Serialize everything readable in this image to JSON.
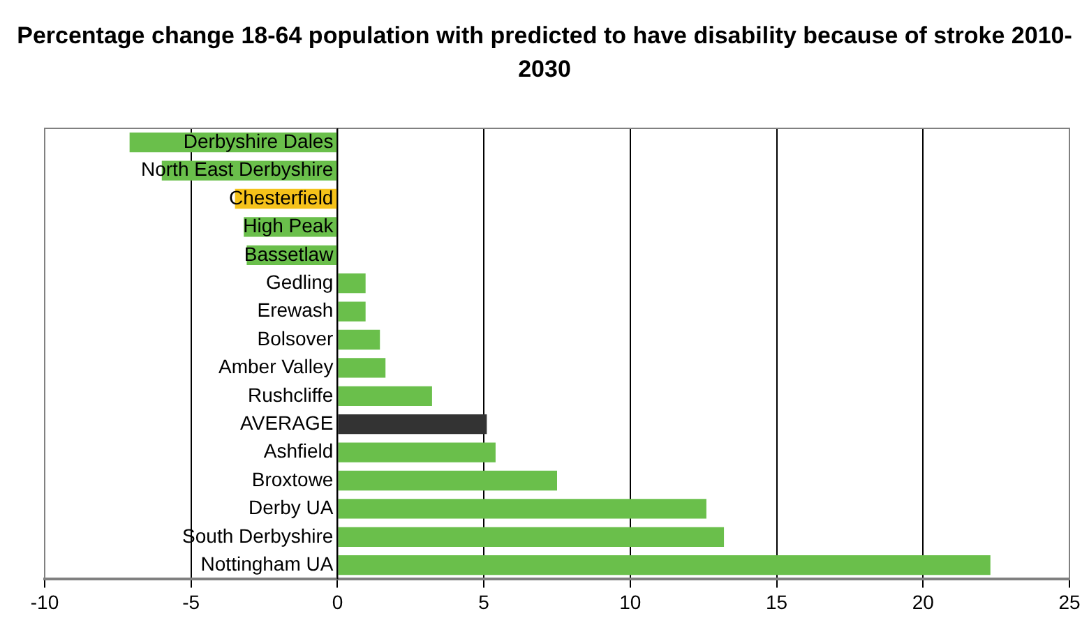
{
  "chart_data": {
    "type": "bar",
    "orientation": "horizontal",
    "title": "Percentage change 18-64 population with predicted to have disability because of stroke 2010-2030",
    "categories": [
      "Derbyshire Dales",
      "North East Derbyshire",
      "Chesterfield",
      "High Peak",
      "Bassetlaw",
      "Gedling",
      "Erewash",
      "Bolsover",
      "Amber Valley",
      "Rushcliffe",
      "AVERAGE",
      "Ashfield",
      "Broxtowe",
      "Derby UA",
      "South Derbyshire",
      "Nottingham UA"
    ],
    "values": [
      -7.1,
      -6.0,
      -3.5,
      -3.2,
      -3.1,
      0.96,
      0.96,
      1.45,
      1.64,
      3.23,
      5.1,
      5.4,
      7.5,
      12.6,
      13.2,
      22.3
    ],
    "colors": [
      "#6abf4b",
      "#6abf4b",
      "#f5c21a",
      "#6abf4b",
      "#6abf4b",
      "#6abf4b",
      "#6abf4b",
      "#6abf4b",
      "#6abf4b",
      "#6abf4b",
      "#333333",
      "#6abf4b",
      "#6abf4b",
      "#6abf4b",
      "#6abf4b",
      "#6abf4b"
    ],
    "xlim": [
      -10,
      25
    ],
    "xticks": [
      -10,
      -5,
      0,
      5,
      10,
      15,
      20,
      25
    ],
    "grid": "x",
    "legend": false
  }
}
